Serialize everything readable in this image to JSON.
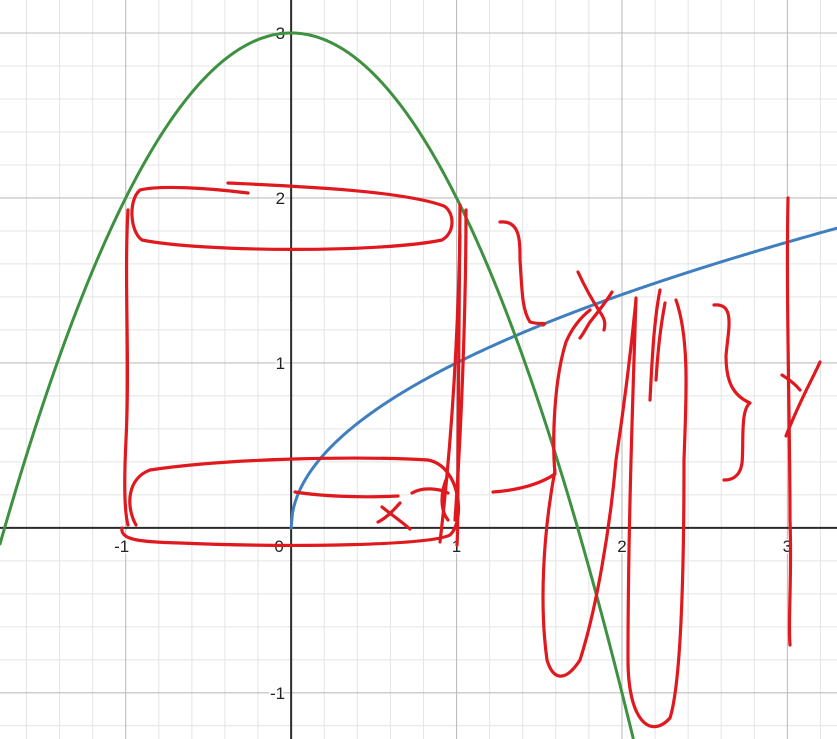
{
  "chart_data": {
    "type": "line",
    "title": "",
    "xlabel": "",
    "ylabel": "",
    "xlim": [
      -1.76,
      3.3
    ],
    "ylim": [
      -1.28,
      3.2
    ],
    "grid": true,
    "x_ticks": [
      {
        "value": -1,
        "label": "-1"
      },
      {
        "value": 0,
        "label": "0"
      },
      {
        "value": 1,
        "label": "1"
      },
      {
        "value": 2,
        "label": "2"
      },
      {
        "value": 3,
        "label": "3"
      }
    ],
    "y_ticks": [
      {
        "value": -1,
        "label": "-1"
      },
      {
        "value": 1,
        "label": "1"
      },
      {
        "value": 2,
        "label": "2"
      },
      {
        "value": 3,
        "label": "3"
      }
    ],
    "series": [
      {
        "color": "#3f7fbf",
        "x": [
          0,
          0.0625,
          0.25,
          0.5,
          1,
          1.5,
          2,
          2.5,
          3,
          3.3
        ],
        "y": [
          0,
          0.25,
          0.5,
          0.707,
          1,
          1.225,
          1.414,
          1.581,
          1.732,
          1.817
        ]
      },
      {
        "color": "#3d9140",
        "x": [
          -1.76,
          -1.5,
          -1,
          -0.5,
          0,
          0.5,
          1,
          1.5,
          2,
          2.07
        ],
        "y": [
          -0.098,
          0.75,
          2.0,
          2.75,
          3.0,
          2.75,
          2.0,
          0.75,
          -1.0,
          -1.285
        ]
      }
    ]
  },
  "annotations": {
    "color": "#e0191f",
    "strokes": [
      "M128,210 C124,280 130,360 126,440 C124,480 124,510 128,525",
      "M248,193 C208,188 160,185 140,190 C128,200 130,232 142,240 C200,252 380,253 442,240 C456,232 454,212 444,206 C400,190 290,186 228,183",
      "M460,205 C460,280 458,380 458,460 C458,500 458,530 457,545",
      "M466,210 C466,300 462,420 455,520",
      "M460,235 C458,330 452,440 440,542",
      "M136,525 C125,505 128,478 150,470 C230,458 360,456 428,460 C460,466 466,520 450,535 C430,545 300,548 180,543 C140,542 120,540 122,528",
      "M295,492 C320,496 360,498 398,496",
      "M448,475 C440,492 440,510 448,520",
      "M412,493 C422,487 438,488 448,493",
      "M382,507 C392,515 402,522 410,529",
      "M400,503 C392,512 386,518 378,522",
      "M500,222 C520,220 520,240 520,260 C522,290 522,310 530,322 C540,325 548,322 543,325",
      "M493,492 C520,490 540,484 555,474 C552,440 554,380 566,342 C572,328 580,318 590,310",
      "M578,272 C584,285 592,300 600,312 C604,318 606,322 604,330",
      "M612,292 C606,302 598,312 590,322 C586,328 584,333 580,338",
      "M555,470 C542,540 540,610 547,660 C553,680 565,683 580,660 C596,610 610,530 616,460 C625,400 632,340 636,300",
      "M636,298 C632,420 628,540 628,660 C628,720 650,740 670,718 C682,680 684,560 684,460 C686,400 690,340 676,300",
      "M660,290 C654,320 652,360 650,400",
      "M665,303 C660,330 658,350 656,380",
      "M714,305 C736,303 728,330 726,356 C726,380 732,395 750,403 C740,410 744,445 742,463 C740,478 730,480 724,480",
      "M788,198 C786,300 790,420 790,520 C792,580 788,620 790,645",
      "M782,375 C790,380 796,385 800,390",
      "M820,362 C812,380 800,400 786,436"
    ]
  }
}
